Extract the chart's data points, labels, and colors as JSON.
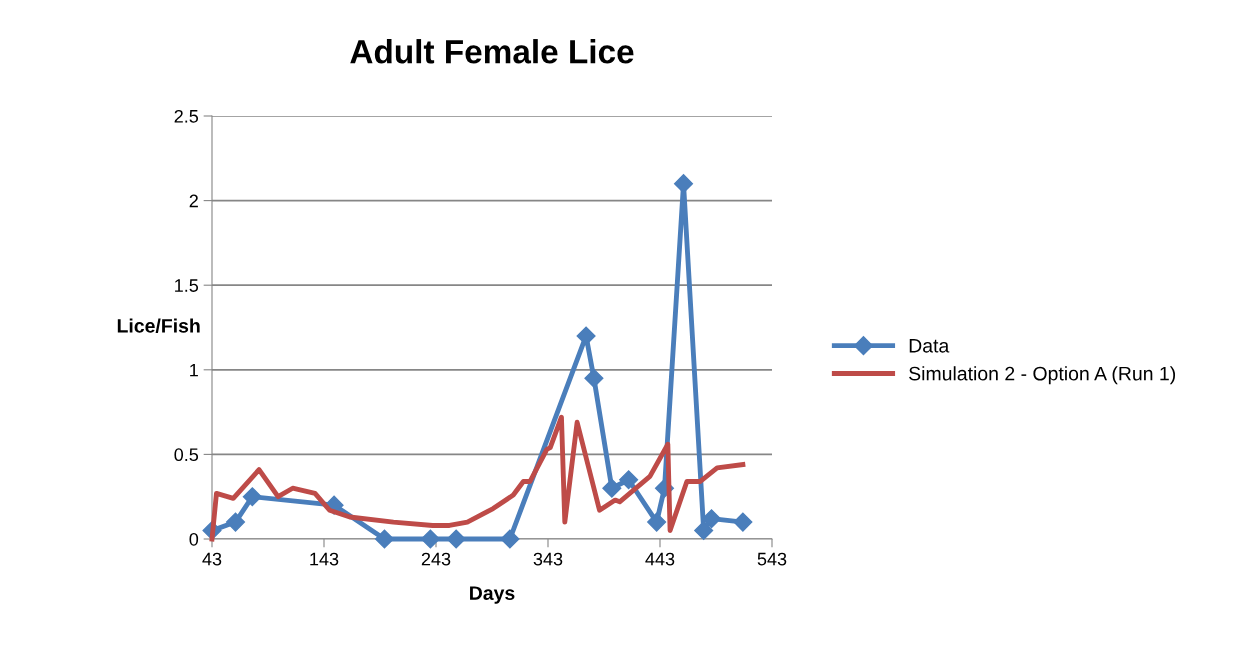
{
  "chart_data": {
    "type": "line",
    "title": "Adult Female Lice",
    "xlabel": "Days",
    "ylabel": "Lice/Fish",
    "xlim": [
      43,
      543
    ],
    "xticks": [
      43,
      143,
      243,
      343,
      443,
      543
    ],
    "ylim": [
      0,
      2.5
    ],
    "yticks": [
      0,
      0.5,
      1,
      1.5,
      2,
      2.5
    ],
    "grid": "y",
    "legend": "right",
    "series": [
      {
        "name": "Data",
        "color": "#4a7ebb",
        "marker": "diamond",
        "x": [
          43,
          64,
          79,
          152,
          197,
          238,
          261,
          309,
          377,
          384,
          400,
          415,
          440,
          447,
          464,
          482,
          489,
          517
        ],
        "values": [
          0.05,
          0.1,
          0.25,
          0.2,
          0,
          0,
          0,
          0,
          1.2,
          0.95,
          0.3,
          0.35,
          0.1,
          0.3,
          2.1,
          0.05,
          0.12,
          0.1
        ]
      },
      {
        "name": "Simulation 2 - Option A (Run 1)",
        "color": "#be4b48",
        "marker": "none",
        "x": [
          43,
          47,
          62,
          85,
          102,
          115,
          135,
          148,
          166,
          205,
          240,
          255,
          271,
          294,
          312,
          321,
          327,
          342,
          345,
          355,
          358,
          369,
          379,
          389,
          403,
          407,
          434,
          450,
          452,
          467,
          479,
          494,
          517
        ],
        "values": [
          0,
          0.27,
          0.24,
          0.41,
          0.25,
          0.3,
          0.27,
          0.17,
          0.13,
          0.1,
          0.08,
          0.08,
          0.1,
          0.18,
          0.26,
          0.34,
          0.34,
          0.53,
          0.54,
          0.72,
          0.1,
          0.69,
          0.43,
          0.17,
          0.23,
          0.22,
          0.37,
          0.56,
          0.05,
          0.34,
          0.34,
          0.42,
          0.44
        ]
      }
    ]
  }
}
